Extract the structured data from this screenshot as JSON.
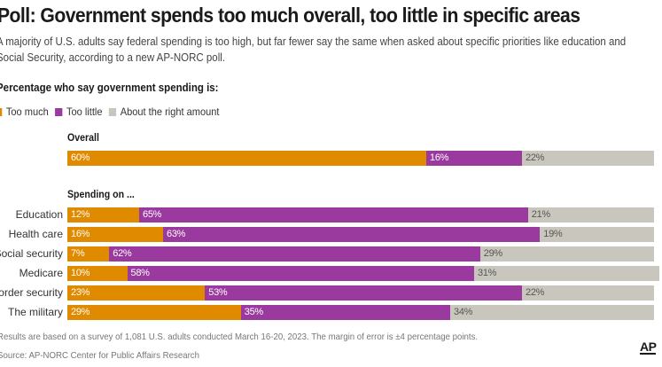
{
  "title": "Poll: Government spends too much overall, too little in specific areas",
  "subtitle": "A majority of U.S. adults say federal spending is too high, but far fewer say the same when asked about specific priorities like education and Social Security, according to a new AP-NORC poll.",
  "question": "Percentage who say government spending is:",
  "legend": [
    {
      "label": "Too much",
      "color": "#e08a00"
    },
    {
      "label": "Too little",
      "color": "#9b3a9e"
    },
    {
      "label": "About the right amount",
      "color": "#c9c7bd"
    }
  ],
  "section_overall": "Overall",
  "section_specific": "Spending on ...",
  "footer_note": "Results are based on a survey of 1,081 U.S. adults conducted March 16-20, 2023. The margin of error is ±4 percentage points.",
  "footer_source": "Source: AP-NORC Center for Public Affairs Research",
  "logo": "AP",
  "chart_data": {
    "type": "bar",
    "orientation": "horizontal",
    "stacked": true,
    "series_names": [
      "Too much",
      "Too little",
      "About the right amount"
    ],
    "colors": [
      "#e08a00",
      "#9b3a9e",
      "#c9c7bd"
    ],
    "overall": {
      "category": "",
      "values": [
        60,
        16,
        22
      ]
    },
    "categories": [
      "Education",
      "Health care",
      "Social security",
      "Medicare",
      "Border security",
      "The military"
    ],
    "series": [
      {
        "name": "Too much",
        "values": [
          12,
          16,
          7,
          10,
          23,
          29
        ]
      },
      {
        "name": "Too little",
        "values": [
          65,
          63,
          62,
          58,
          53,
          35
        ]
      },
      {
        "name": "About the right amount",
        "values": [
          21,
          19,
          29,
          31,
          22,
          34
        ]
      }
    ],
    "value_suffix": "%"
  }
}
